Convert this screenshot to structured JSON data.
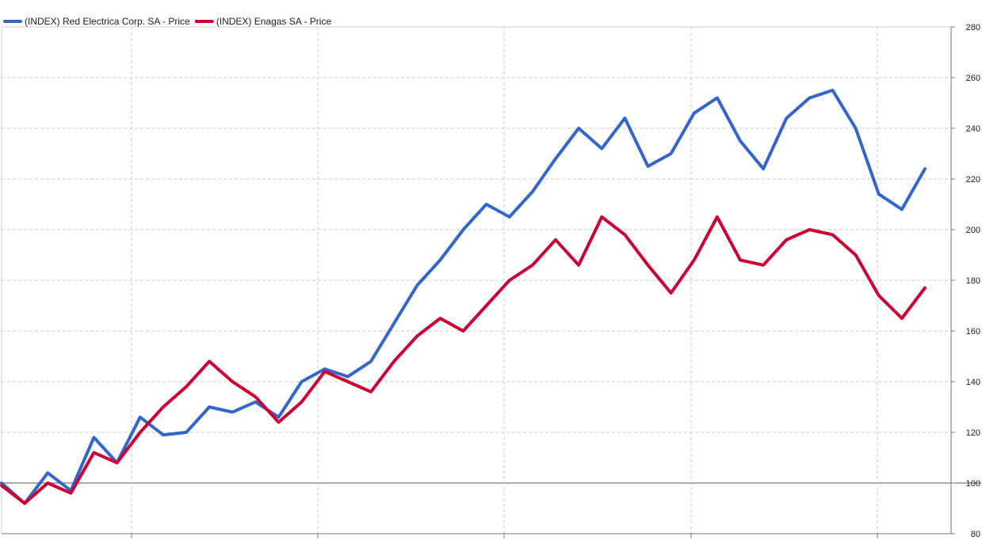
{
  "chart_data": {
    "type": "line",
    "legend_position": "top-left",
    "grid": true,
    "y_axis_side": "right",
    "ylim": [
      80,
      280
    ],
    "y_ticks": [
      80,
      100,
      120,
      140,
      160,
      180,
      200,
      220,
      240,
      260,
      280
    ],
    "y_tick_labels": [
      "80",
      "100",
      "120",
      "140",
      "160",
      "180",
      "200",
      "220",
      "240",
      "260",
      "280"
    ],
    "baseline": 100,
    "x_points": 41,
    "series": [
      {
        "name": "(INDEX) Red Electrica Corp. SA - Price",
        "color": "#3366CC",
        "values": [
          100,
          92,
          104,
          97,
          118,
          108,
          126,
          119,
          120,
          130,
          128,
          132,
          126,
          140,
          145,
          142,
          148,
          163,
          178,
          188,
          200,
          210,
          205,
          215,
          228,
          240,
          232,
          244,
          225,
          230,
          246,
          252,
          235,
          224,
          244,
          252,
          255,
          240,
          214,
          208,
          224
        ]
      },
      {
        "name": "(INDEX) Enagas SA - Price",
        "color": "#CC0033",
        "values": [
          99,
          92,
          100,
          96,
          112,
          108,
          120,
          130,
          138,
          148,
          140,
          134,
          124,
          132,
          144,
          140,
          136,
          148,
          158,
          165,
          160,
          170,
          180,
          186,
          196,
          186,
          205,
          198,
          186,
          175,
          188,
          205,
          188,
          186,
          196,
          200,
          198,
          190,
          174,
          165,
          177
        ]
      }
    ]
  }
}
